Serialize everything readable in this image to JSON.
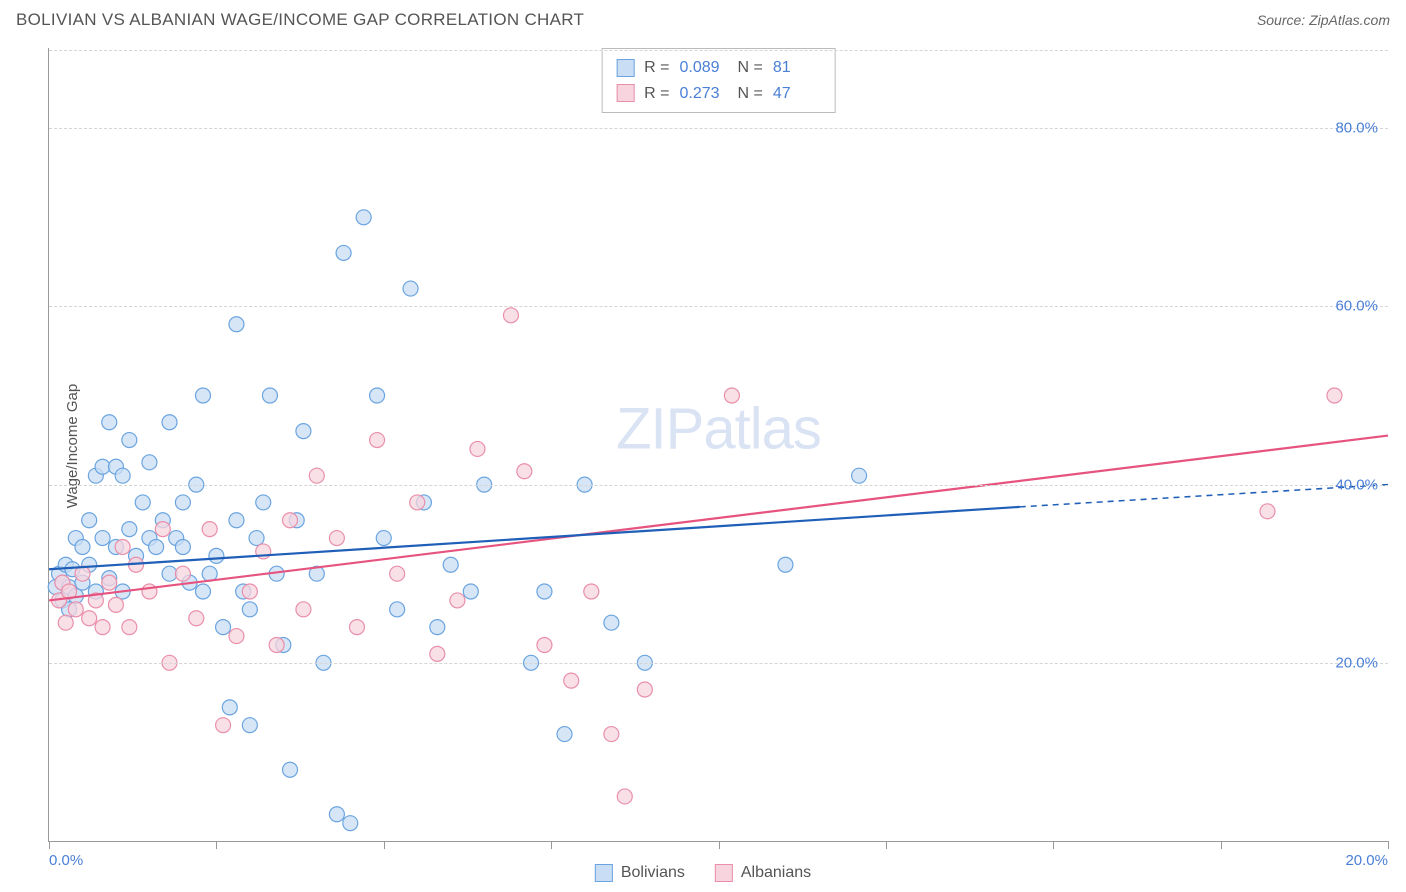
{
  "title": "BOLIVIAN VS ALBANIAN WAGE/INCOME GAP CORRELATION CHART",
  "source_label": "Source: ZipAtlas.com",
  "ylabel": "Wage/Income Gap",
  "watermark": "ZIPatlas",
  "chart": {
    "type": "scatter",
    "xlim": [
      0,
      20
    ],
    "ylim": [
      0,
      89
    ],
    "x_ticks": [
      0,
      2.5,
      5,
      7.5,
      10,
      12.5,
      15,
      17.5,
      20
    ],
    "x_tick_labels": {
      "0": "0.0%",
      "20": "20.0%"
    },
    "y_ticks": [
      20,
      40,
      60,
      80
    ],
    "y_tick_labels": [
      "20.0%",
      "40.0%",
      "60.0%",
      "80.0%"
    ],
    "grid_color": "#d5d5d5",
    "axis_color": "#999999",
    "background_color": "#ffffff",
    "marker_radius": 7.5,
    "marker_stroke_width": 1.2,
    "line_width": 2.2,
    "series": [
      {
        "name": "Bolivians",
        "fill": "#c9ddf4",
        "stroke": "#6aa4e0",
        "line_color": "#1f5fb8",
        "r": 0.089,
        "n": 81,
        "trend": {
          "x1": 0,
          "y1": 30.5,
          "x2": 14.5,
          "y2": 37.5,
          "x2_ext": 20,
          "y2_ext": 40.0
        },
        "points": [
          [
            0.1,
            28.5
          ],
          [
            0.15,
            30
          ],
          [
            0.2,
            27
          ],
          [
            0.2,
            29
          ],
          [
            0.25,
            31
          ],
          [
            0.3,
            26
          ],
          [
            0.3,
            28.5
          ],
          [
            0.35,
            30.5
          ],
          [
            0.4,
            27.5
          ],
          [
            0.4,
            34
          ],
          [
            0.5,
            29
          ],
          [
            0.5,
            33
          ],
          [
            0.6,
            31
          ],
          [
            0.6,
            36
          ],
          [
            0.7,
            28
          ],
          [
            0.7,
            41
          ],
          [
            0.8,
            34
          ],
          [
            0.8,
            42
          ],
          [
            0.9,
            29.5
          ],
          [
            0.9,
            47
          ],
          [
            1.0,
            33
          ],
          [
            1.0,
            42
          ],
          [
            1.1,
            28
          ],
          [
            1.1,
            41
          ],
          [
            1.2,
            35
          ],
          [
            1.2,
            45
          ],
          [
            1.3,
            32
          ],
          [
            1.4,
            38
          ],
          [
            1.5,
            34
          ],
          [
            1.5,
            42.5
          ],
          [
            1.6,
            33
          ],
          [
            1.7,
            36
          ],
          [
            1.8,
            30
          ],
          [
            1.8,
            47
          ],
          [
            1.9,
            34
          ],
          [
            2.0,
            38
          ],
          [
            2.0,
            33
          ],
          [
            2.1,
            29
          ],
          [
            2.2,
            40
          ],
          [
            2.3,
            28
          ],
          [
            2.3,
            50
          ],
          [
            2.4,
            30
          ],
          [
            2.5,
            32
          ],
          [
            2.6,
            24
          ],
          [
            2.7,
            15
          ],
          [
            2.8,
            58
          ],
          [
            2.8,
            36
          ],
          [
            2.9,
            28
          ],
          [
            3.0,
            26
          ],
          [
            3.0,
            13
          ],
          [
            3.1,
            34
          ],
          [
            3.2,
            38
          ],
          [
            3.3,
            50
          ],
          [
            3.4,
            30
          ],
          [
            3.5,
            22
          ],
          [
            3.6,
            8
          ],
          [
            3.7,
            36
          ],
          [
            3.8,
            46
          ],
          [
            4.0,
            30
          ],
          [
            4.1,
            20
          ],
          [
            4.3,
            3
          ],
          [
            4.4,
            66
          ],
          [
            4.5,
            2
          ],
          [
            4.7,
            70
          ],
          [
            4.9,
            50
          ],
          [
            5.0,
            34
          ],
          [
            5.2,
            26
          ],
          [
            5.4,
            62
          ],
          [
            5.6,
            38
          ],
          [
            5.8,
            24
          ],
          [
            6.0,
            31
          ],
          [
            6.3,
            28
          ],
          [
            6.5,
            40
          ],
          [
            7.2,
            20
          ],
          [
            7.4,
            28
          ],
          [
            7.7,
            12
          ],
          [
            8.0,
            40
          ],
          [
            8.4,
            24.5
          ],
          [
            8.9,
            20
          ],
          [
            11.0,
            31
          ],
          [
            12.1,
            41
          ]
        ]
      },
      {
        "name": "Albanians",
        "fill": "#f7d4de",
        "stroke": "#e98fab",
        "line_color": "#e6537f",
        "r": 0.273,
        "n": 47,
        "trend": {
          "x1": 0,
          "y1": 27.0,
          "x2": 20,
          "y2": 45.5
        },
        "points": [
          [
            0.15,
            27
          ],
          [
            0.2,
            29
          ],
          [
            0.25,
            24.5
          ],
          [
            0.3,
            28
          ],
          [
            0.4,
            26
          ],
          [
            0.5,
            30
          ],
          [
            0.6,
            25
          ],
          [
            0.7,
            27
          ],
          [
            0.8,
            24
          ],
          [
            0.9,
            29
          ],
          [
            1.0,
            26.5
          ],
          [
            1.1,
            33
          ],
          [
            1.2,
            24
          ],
          [
            1.3,
            31
          ],
          [
            1.5,
            28
          ],
          [
            1.7,
            35
          ],
          [
            1.8,
            20
          ],
          [
            2.0,
            30
          ],
          [
            2.2,
            25
          ],
          [
            2.4,
            35
          ],
          [
            2.6,
            13
          ],
          [
            2.8,
            23
          ],
          [
            3.0,
            28
          ],
          [
            3.2,
            32.5
          ],
          [
            3.4,
            22
          ],
          [
            3.6,
            36
          ],
          [
            3.8,
            26
          ],
          [
            4.0,
            41
          ],
          [
            4.3,
            34
          ],
          [
            4.6,
            24
          ],
          [
            4.9,
            45
          ],
          [
            5.2,
            30
          ],
          [
            5.5,
            38
          ],
          [
            5.8,
            21
          ],
          [
            6.1,
            27
          ],
          [
            6.4,
            44
          ],
          [
            6.9,
            59
          ],
          [
            7.1,
            41.5
          ],
          [
            7.4,
            22
          ],
          [
            7.8,
            18
          ],
          [
            8.1,
            28
          ],
          [
            8.4,
            12
          ],
          [
            8.6,
            5
          ],
          [
            8.9,
            17
          ],
          [
            10.2,
            50
          ],
          [
            18.2,
            37
          ],
          [
            19.2,
            50
          ]
        ]
      }
    ]
  },
  "legend_top": {
    "r_label": "R =",
    "n_label": "N ="
  },
  "legend_bottom": {
    "items": [
      "Bolivians",
      "Albanians"
    ]
  }
}
